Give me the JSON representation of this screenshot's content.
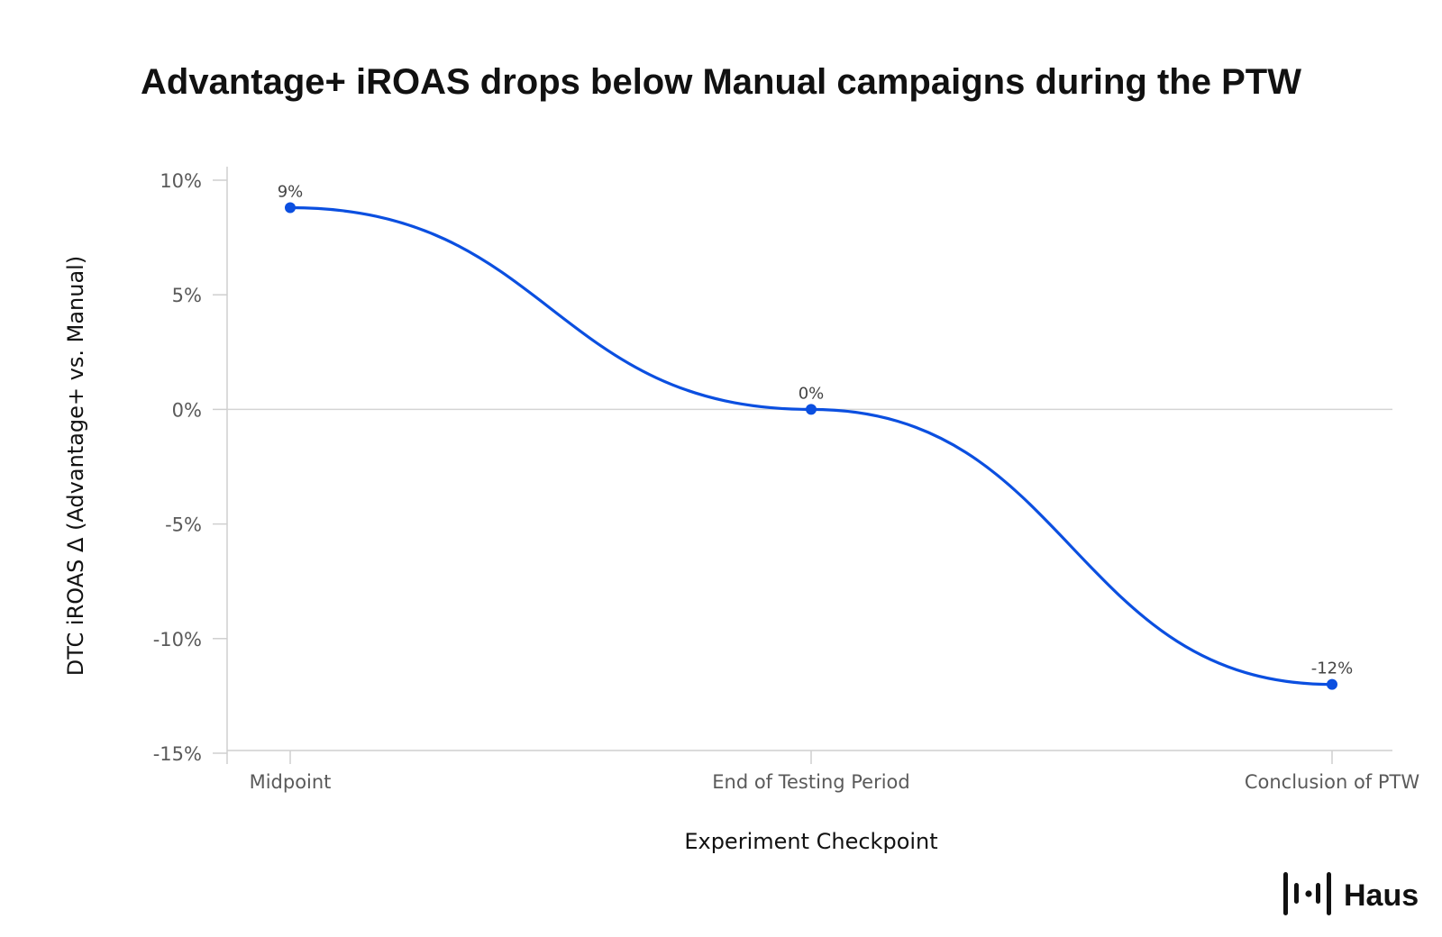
{
  "brand": {
    "name": "Haus",
    "logo_icon": "haus-bars-icon"
  },
  "colors": {
    "series": "#0b4fe0",
    "axis": "#cfcfcf",
    "text": "#111111",
    "tick": "#5a5a5a"
  },
  "chart_data": {
    "type": "line",
    "title": "Advantage+ iROAS drops below Manual campaigns during the PTW",
    "xlabel": "Experiment Checkpoint",
    "ylabel": "DTC iROAS Δ (Advantage+ vs. Manual)",
    "categories": [
      "Midpoint",
      "End of Testing Period",
      "Conclusion of PTW"
    ],
    "series": [
      {
        "name": "DTC iROAS Δ",
        "values": [
          8.8,
          0,
          -12
        ],
        "data_labels": [
          "9%",
          "0%",
          "-12%"
        ]
      }
    ],
    "ylim": [
      -15,
      10
    ],
    "yticks": [
      10,
      5,
      0,
      -5,
      -10,
      -15
    ],
    "ytick_labels": [
      "10%",
      "5%",
      "0%",
      "-5%",
      "-10%",
      "-15%"
    ],
    "smooth": true,
    "grid": false,
    "reference_line": 0
  }
}
